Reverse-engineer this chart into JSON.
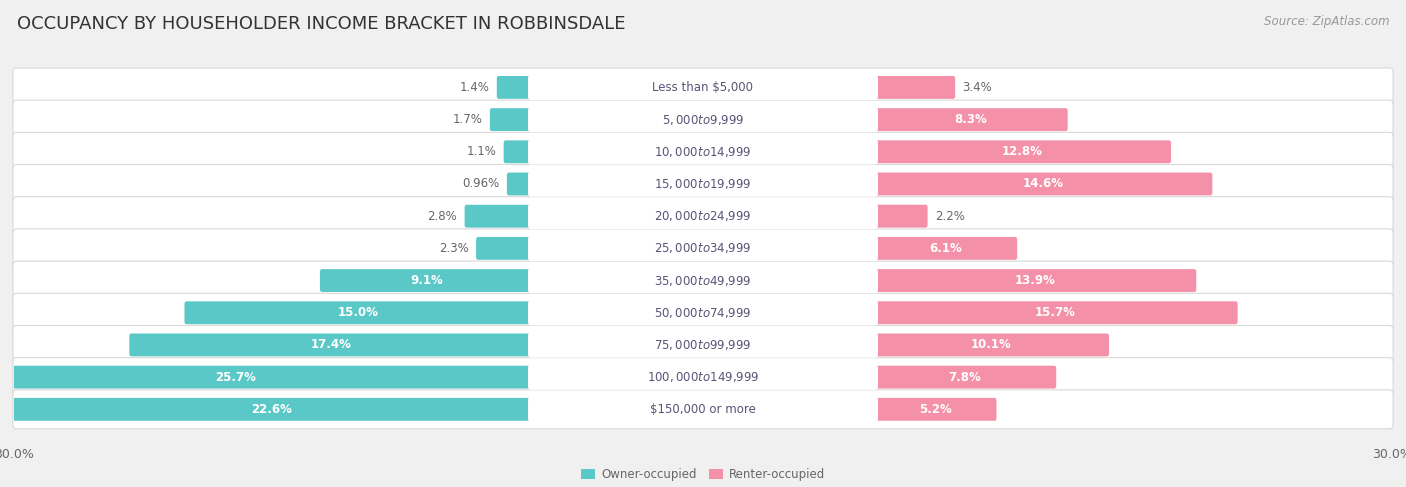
{
  "title": "OCCUPANCY BY HOUSEHOLDER INCOME BRACKET IN ROBBINSDALE",
  "source": "Source: ZipAtlas.com",
  "categories": [
    "Less than $5,000",
    "$5,000 to $9,999",
    "$10,000 to $14,999",
    "$15,000 to $19,999",
    "$20,000 to $24,999",
    "$25,000 to $34,999",
    "$35,000 to $49,999",
    "$50,000 to $74,999",
    "$75,000 to $99,999",
    "$100,000 to $149,999",
    "$150,000 or more"
  ],
  "owner_values": [
    1.4,
    1.7,
    1.1,
    0.96,
    2.8,
    2.3,
    9.1,
    15.0,
    17.4,
    25.7,
    22.6
  ],
  "renter_values": [
    3.4,
    8.3,
    12.8,
    14.6,
    2.2,
    6.1,
    13.9,
    15.7,
    10.1,
    7.8,
    5.2
  ],
  "owner_color": "#5BC8C8",
  "renter_color": "#F490A8",
  "owner_label": "Owner-occupied",
  "renter_label": "Renter-occupied",
  "axis_max": 30.0,
  "bg_color": "#f0f0f0",
  "row_bg_color": "#ffffff",
  "row_border_color": "#d8d8d8",
  "title_fontsize": 13,
  "label_fontsize": 8.5,
  "value_fontsize": 8.5,
  "tick_fontsize": 9,
  "source_fontsize": 8.5,
  "label_pill_color": "#ffffff",
  "label_text_color": "#555577",
  "value_text_color": "#666666"
}
